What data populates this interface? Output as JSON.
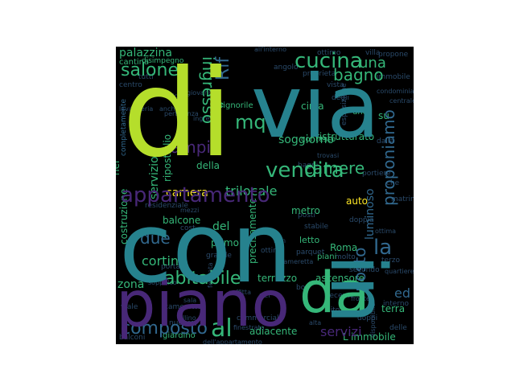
{
  "colors": {
    "background": "#000000",
    "palette": {
      "lime": "#b5de2b",
      "teal": "#26828e",
      "green": "#35b779",
      "purple": "#482878",
      "yellow": "#fde725",
      "blue": "#31688e",
      "dark": "#2a4a6a"
    }
  },
  "words": [
    {
      "text": "di",
      "color": "lime"
    },
    {
      "text": "via",
      "color": "teal"
    },
    {
      "text": "con",
      "color": "teal"
    },
    {
      "text": "piano",
      "color": "purple"
    },
    {
      "text": "da",
      "color": "green"
    },
    {
      "text": "in",
      "color": "teal"
    },
    {
      "text": "appartamento",
      "color": "purple"
    },
    {
      "text": "vendita",
      "color": "green"
    },
    {
      "text": "cucina",
      "color": "green"
    },
    {
      "text": "una",
      "color": "green"
    },
    {
      "text": "salone",
      "color": "green"
    },
    {
      "text": "bagno",
      "color": "green"
    },
    {
      "text": "mq",
      "color": "green"
    },
    {
      "text": "ingresso",
      "color": "green"
    },
    {
      "text": "composto",
      "color": "blue"
    },
    {
      "text": "al",
      "color": "green"
    },
    {
      "text": "abitabile",
      "color": "green"
    },
    {
      "text": "camere",
      "color": "green"
    },
    {
      "text": "la",
      "color": "blue"
    },
    {
      "text": "posto",
      "color": "blue"
    },
    {
      "text": "proponiamo",
      "color": "blue"
    },
    {
      "text": "soggiorno",
      "color": "green"
    },
    {
      "text": "ampio",
      "color": "purple"
    },
    {
      "text": "Rif",
      "color": "blue"
    },
    {
      "text": "due",
      "color": "blue"
    },
    {
      "text": "cortina",
      "color": "green"
    },
    {
      "text": "zona",
      "color": "green"
    },
    {
      "text": "camera",
      "color": "yellow"
    },
    {
      "text": "trilocale",
      "color": "green"
    },
    {
      "text": "servizi",
      "color": "purple"
    },
    {
      "text": "palazzina",
      "color": "green"
    },
    {
      "text": "servizio",
      "color": "green"
    },
    {
      "text": "ripostiglio",
      "color": "green"
    },
    {
      "text": "luminoso",
      "color": "blue"
    },
    {
      "text": "ristrutturato",
      "color": "green"
    },
    {
      "text": "circa",
      "color": "green"
    },
    {
      "text": "del",
      "color": "green"
    },
    {
      "text": "primo",
      "color": "green"
    },
    {
      "text": "terrazzo",
      "color": "green"
    },
    {
      "text": "ascensore",
      "color": "green"
    },
    {
      "text": "adiacente",
      "color": "green"
    },
    {
      "text": "L'immobile",
      "color": "green"
    },
    {
      "text": "della",
      "color": "green"
    },
    {
      "text": "nel",
      "color": "green"
    },
    {
      "text": "costruzione",
      "color": "green"
    },
    {
      "text": "balcone",
      "color": "green"
    },
    {
      "text": "metro",
      "color": "green"
    },
    {
      "text": "auto",
      "color": "yellow"
    },
    {
      "text": "letto",
      "color": "green"
    },
    {
      "text": "Roma",
      "color": "green"
    },
    {
      "text": "precisamente",
      "color": "green"
    },
    {
      "text": "ed",
      "color": "blue"
    },
    {
      "text": "terra",
      "color": "green"
    },
    {
      "text": "su",
      "color": "green"
    },
    {
      "text": "piani",
      "color": "green"
    },
    {
      "text": "cantina",
      "color": "green"
    },
    {
      "text": "signorile",
      "color": "green"
    },
    {
      "text": "contesto",
      "color": "green"
    },
    {
      "text": "giardino",
      "color": "green"
    },
    {
      "text": "completamente",
      "color": "blue"
    },
    {
      "text": "disimpegno",
      "color": "green"
    },
    {
      "text": "interno",
      "color": "dark"
    },
    {
      "text": "doppia",
      "color": "dark"
    },
    {
      "text": "stabile",
      "color": "dark"
    },
    {
      "text": "molto",
      "color": "dark"
    },
    {
      "text": "viale",
      "color": "dark"
    },
    {
      "text": "sito",
      "color": "dark"
    },
    {
      "text": "per",
      "color": "dark"
    },
    {
      "text": "tre",
      "color": "green"
    },
    {
      "text": "uno",
      "color": "green"
    },
    {
      "text": "box",
      "color": "dark"
    },
    {
      "text": "villa",
      "color": "dark"
    },
    {
      "text": "degli",
      "color": "dark"
    },
    {
      "text": "dalla",
      "color": "dark"
    },
    {
      "text": "proprieta",
      "color": "dark"
    },
    {
      "text": "residenziale",
      "color": "dark"
    },
    {
      "text": "secondo",
      "color": "dark"
    },
    {
      "text": "tutti",
      "color": "dark"
    },
    {
      "text": "bagni",
      "color": "dark"
    },
    {
      "text": "balconi",
      "color": "dark"
    },
    {
      "text": "esposizione",
      "color": "dark"
    },
    {
      "text": "camerette",
      "color": "dark"
    },
    {
      "text": "grande",
      "color": "dark"
    },
    {
      "text": "parquet",
      "color": "dark"
    },
    {
      "text": "posti",
      "color": "dark"
    },
    {
      "text": "centro",
      "color": "dark"
    },
    {
      "text": "angolo",
      "color": "dark"
    },
    {
      "text": "vista",
      "color": "dark"
    },
    {
      "text": "cost",
      "color": "dark"
    },
    {
      "text": "san",
      "color": "dark"
    },
    {
      "text": "che",
      "color": "dark"
    },
    {
      "text": "terzo",
      "color": "dark"
    },
    {
      "text": "delle",
      "color": "dark"
    },
    {
      "text": "doppi",
      "color": "dark"
    },
    {
      "text": "porta",
      "color": "dark"
    },
    {
      "text": "ottimo",
      "color": "dark"
    },
    {
      "text": "propone",
      "color": "dark"
    },
    {
      "text": "immobile",
      "color": "dark"
    },
    {
      "text": "commerciale",
      "color": "dark"
    },
    {
      "text": "nuovo",
      "color": "dark"
    },
    {
      "text": "ottime",
      "color": "dark"
    },
    {
      "text": "matrimoniale",
      "color": "dark"
    },
    {
      "text": "portiere",
      "color": "dark"
    },
    {
      "text": "recente",
      "color": "dark"
    },
    {
      "text": "disponibile",
      "color": "dark"
    },
    {
      "text": "giovanni",
      "color": "dark"
    },
    {
      "text": "ubicato",
      "color": "dark"
    },
    {
      "text": "cameretta",
      "color": "dark"
    },
    {
      "text": "all'interno",
      "color": "dark"
    },
    {
      "text": "quartiere",
      "color": "dark"
    },
    {
      "text": "dell'appartamento",
      "color": "dark"
    },
    {
      "text": "fermata",
      "color": "dark"
    },
    {
      "text": "soffitta",
      "color": "dark"
    },
    {
      "text": "fronte",
      "color": "dark"
    },
    {
      "text": "villino",
      "color": "dark"
    },
    {
      "text": "ben",
      "color": "dark"
    },
    {
      "text": "alta",
      "color": "dark"
    },
    {
      "text": "anche",
      "color": "dark"
    },
    {
      "text": "pertinenza",
      "color": "dark"
    },
    {
      "text": "trovasi",
      "color": "dark"
    },
    {
      "text": "ingresso",
      "color": "dark"
    },
    {
      "text": "condominiale",
      "color": "dark"
    },
    {
      "text": "soppalco",
      "color": "dark"
    },
    {
      "text": "mezzi",
      "color": "dark"
    },
    {
      "text": "lavanderia",
      "color": "dark"
    },
    {
      "text": "finestrato",
      "color": "dark"
    },
    {
      "text": "centrale",
      "color": "dark"
    },
    {
      "text": "ottima",
      "color": "dark"
    },
    {
      "text": "sala",
      "color": "dark"
    }
  ]
}
